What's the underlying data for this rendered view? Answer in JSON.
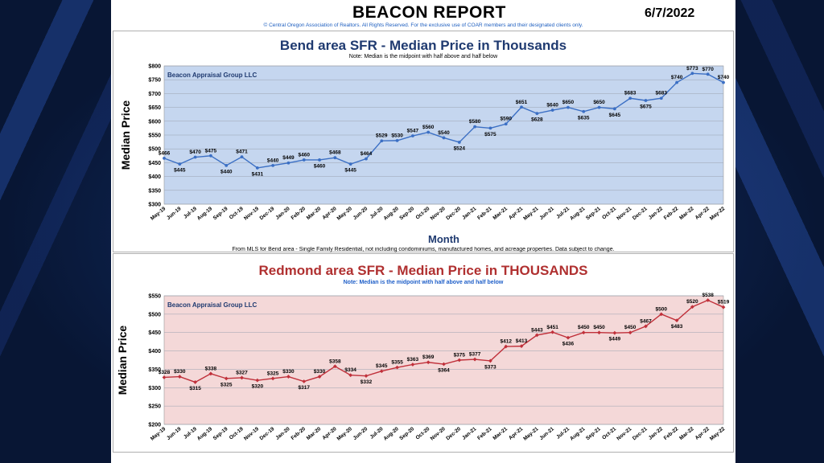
{
  "header": {
    "title": "BEACON REPORT",
    "date": "6/7/2022",
    "copyright": "© Central Oregon Association of Realtors. All Rights Reserved. For the exclusive use of COAR members and their designated clients only."
  },
  "bend": {
    "footnote": "From MLS for Bend area - Single Family Residential, not including condominiums, manufactured homes, and acreage properties. Data subject to change."
  },
  "colors": {
    "bend_line": "#3b6fc4",
    "bend_plot_bg": "#c5d6ef",
    "red_line": "#c0303a",
    "red_plot_bg": "#f4d8d8"
  },
  "chart_data": [
    {
      "type": "line",
      "title": "Bend area SFR - Median Price in Thousands",
      "subtitle": "Note: Median is the midpoint with half above and half below",
      "watermark": "Beacon Appraisal Group LLC",
      "xlabel": "Month",
      "ylabel": "Median Price",
      "ylim": [
        300,
        800
      ],
      "yticks": [
        "$300",
        "$350",
        "$400",
        "$450",
        "$500",
        "$550",
        "$600",
        "$650",
        "$700",
        "$750",
        "$800"
      ],
      "grid": true,
      "categories": [
        "May-19",
        "Jun-19",
        "Jul-19",
        "Aug-19",
        "Sep-19",
        "Oct-19",
        "Nov-19",
        "Dec-19",
        "Jan-20",
        "Feb-20",
        "Mar-20",
        "Apr-20",
        "May-20",
        "Jun-20",
        "Jul-20",
        "Aug-20",
        "Sep-20",
        "Oct-20",
        "Nov-20",
        "Dec-20",
        "Jan-21",
        "Feb-21",
        "Mar-21",
        "Apr-21",
        "May-21",
        "Jun-21",
        "Jul-21",
        "Aug-21",
        "Sep-21",
        "Oct-21",
        "Nov-21",
        "Dec-21",
        "Jan-22",
        "Feb-22",
        "Mar-22",
        "Apr-22",
        "May-22"
      ],
      "values": [
        466,
        445,
        470,
        475,
        440,
        471,
        431,
        440,
        449,
        460,
        460,
        468,
        445,
        464,
        529,
        530,
        547,
        560,
        540,
        524,
        580,
        575,
        590,
        651,
        628,
        640,
        650,
        635,
        650,
        645,
        683,
        675,
        683,
        740,
        773,
        770,
        740
      ]
    },
    {
      "type": "line",
      "title": "Redmond area SFR - Median Price in THOUSANDS",
      "subtitle": "Note: Median is the midpoint with half above and half below",
      "watermark": "Beacon Appraisal Group LLC",
      "xlabel": "",
      "ylabel": "Median Price",
      "ylim": [
        200,
        550
      ],
      "yticks": [
        "$200",
        "$250",
        "$300",
        "$350",
        "$400",
        "$450",
        "$500",
        "$550"
      ],
      "grid": true,
      "categories": [
        "May-19",
        "Jun-19",
        "Jul-19",
        "Aug-19",
        "Sep-19",
        "Oct-19",
        "Nov-19",
        "Dec-19",
        "Jan-20",
        "Feb-20",
        "Mar-20",
        "Apr-20",
        "May-20",
        "Jun-20",
        "Jul-20",
        "Aug-20",
        "Sep-20",
        "Oct-20",
        "Nov-20",
        "Dec-20",
        "Jan-21",
        "Feb-21",
        "Mar-21",
        "Apr-21",
        "May-21",
        "Jun-21",
        "Jul-21",
        "Aug-21",
        "Sep-21",
        "Oct-21",
        "Nov-21",
        "Dec-21",
        "Jan-22",
        "Feb-22",
        "Mar-22",
        "Apr-22",
        "May-22"
      ],
      "values": [
        328,
        330,
        315,
        338,
        325,
        327,
        320,
        325,
        330,
        317,
        330,
        358,
        334,
        332,
        345,
        355,
        363,
        369,
        364,
        375,
        377,
        373,
        412,
        413,
        443,
        451,
        436,
        450,
        450,
        449,
        450,
        467,
        500,
        483,
        520,
        538,
        519
      ]
    }
  ]
}
